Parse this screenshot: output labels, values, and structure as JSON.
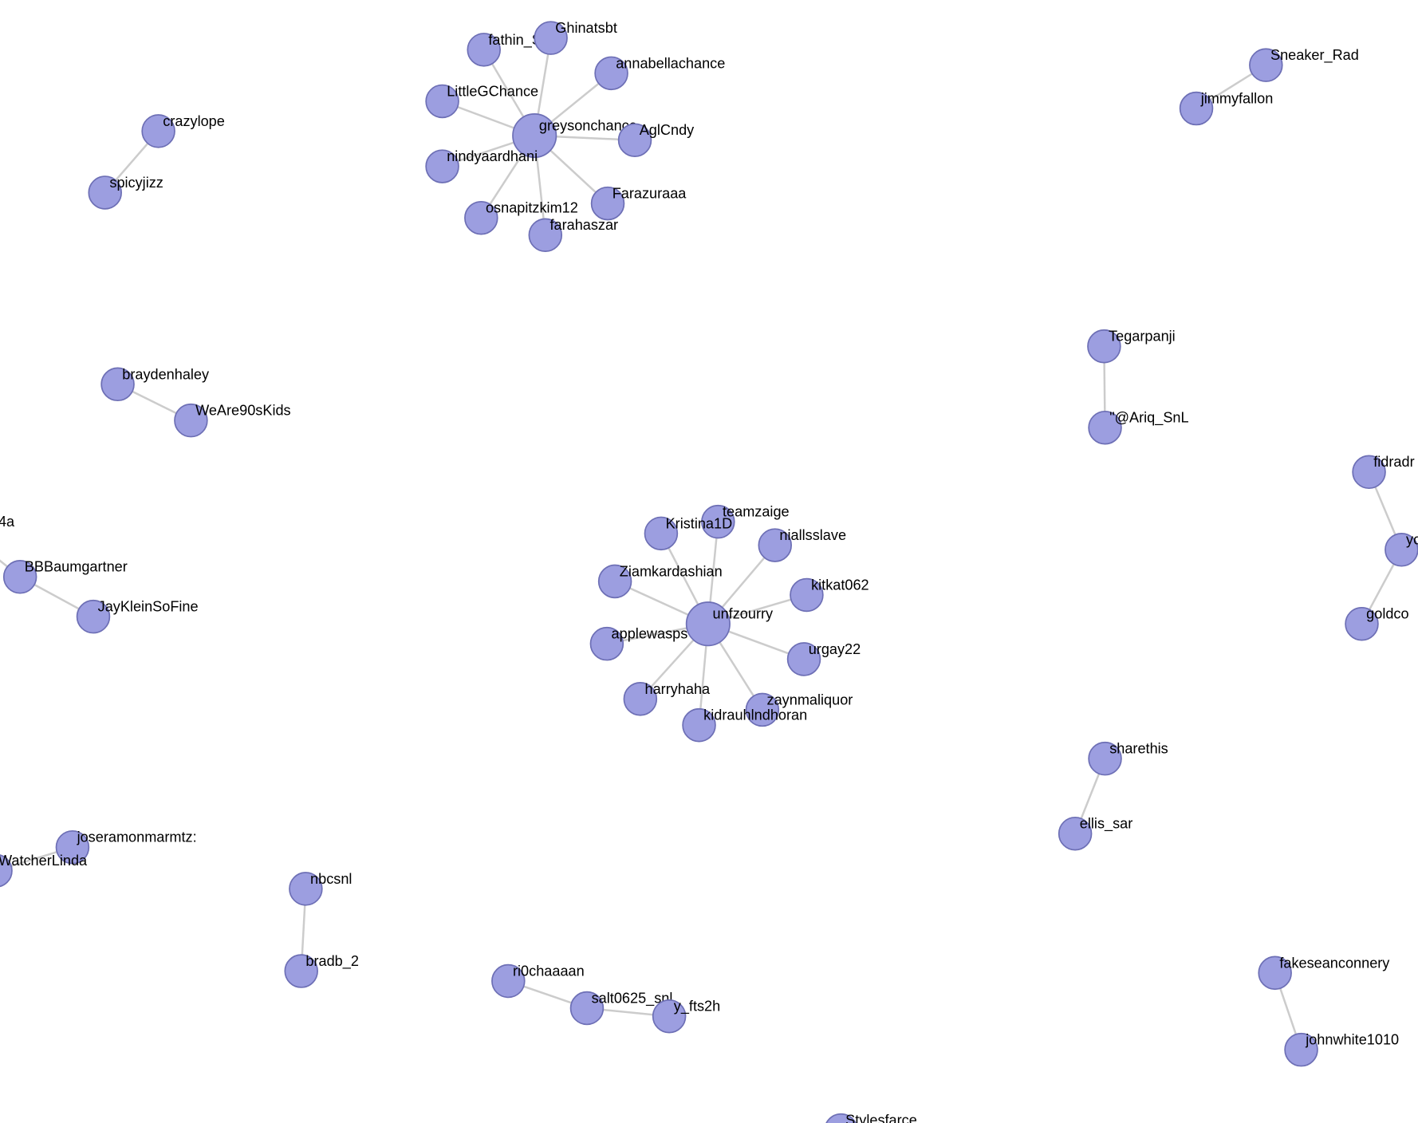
{
  "nodes": [
    {
      "label": "greysonchance"
    },
    {
      "label": "fathin_ScL"
    },
    {
      "label": "Ghinatsbt"
    },
    {
      "label": "annabellachance"
    },
    {
      "label": "LittleGChance"
    },
    {
      "label": "AglCndy"
    },
    {
      "label": "nindyaardhani"
    },
    {
      "label": "Farazuraaa"
    },
    {
      "label": "osnapitzkim12"
    },
    {
      "label": "farahaszar"
    },
    {
      "label": "crazylope"
    },
    {
      "label": "spicyjizz"
    },
    {
      "label": "braydenhaley"
    },
    {
      "label": "WeAre90sKids"
    },
    {
      "label": "4a"
    },
    {
      "label": "BBBaumgartner"
    },
    {
      "label": "JayKleinSoFine"
    },
    {
      "label": "unfzourry"
    },
    {
      "label": "teamzaige"
    },
    {
      "label": "Kristina1D"
    },
    {
      "label": "niallsslave"
    },
    {
      "label": "Ziamkardashian"
    },
    {
      "label": "kitkat062"
    },
    {
      "label": "applewasps"
    },
    {
      "label": "urgay22"
    },
    {
      "label": "harryhaha"
    },
    {
      "label": "zaynmaliquor"
    },
    {
      "label": "kidrauhlndhoran"
    },
    {
      "label": "Sneaker_Rad"
    },
    {
      "label": "jimmyfallon"
    },
    {
      "label": "Tegarpanji"
    },
    {
      "label": "\"@Ariq_SnL"
    },
    {
      "label": "fidradr"
    },
    {
      "label": "yo"
    },
    {
      "label": "goldco"
    },
    {
      "label": "sharethis"
    },
    {
      "label": "ellis_sar"
    },
    {
      "label": "joseramonmarmtz:"
    },
    {
      "label": "WatcherLinda"
    },
    {
      "label": "nbcsnl"
    },
    {
      "label": "bradb_2"
    },
    {
      "label": "ri0chaaaan"
    },
    {
      "label": "salt0625_snl"
    },
    {
      "label": "y_fts2h"
    },
    {
      "label": "fakeseanconnery"
    },
    {
      "label": "johnwhite1010"
    },
    {
      "label": "Stylesfarce"
    }
  ]
}
